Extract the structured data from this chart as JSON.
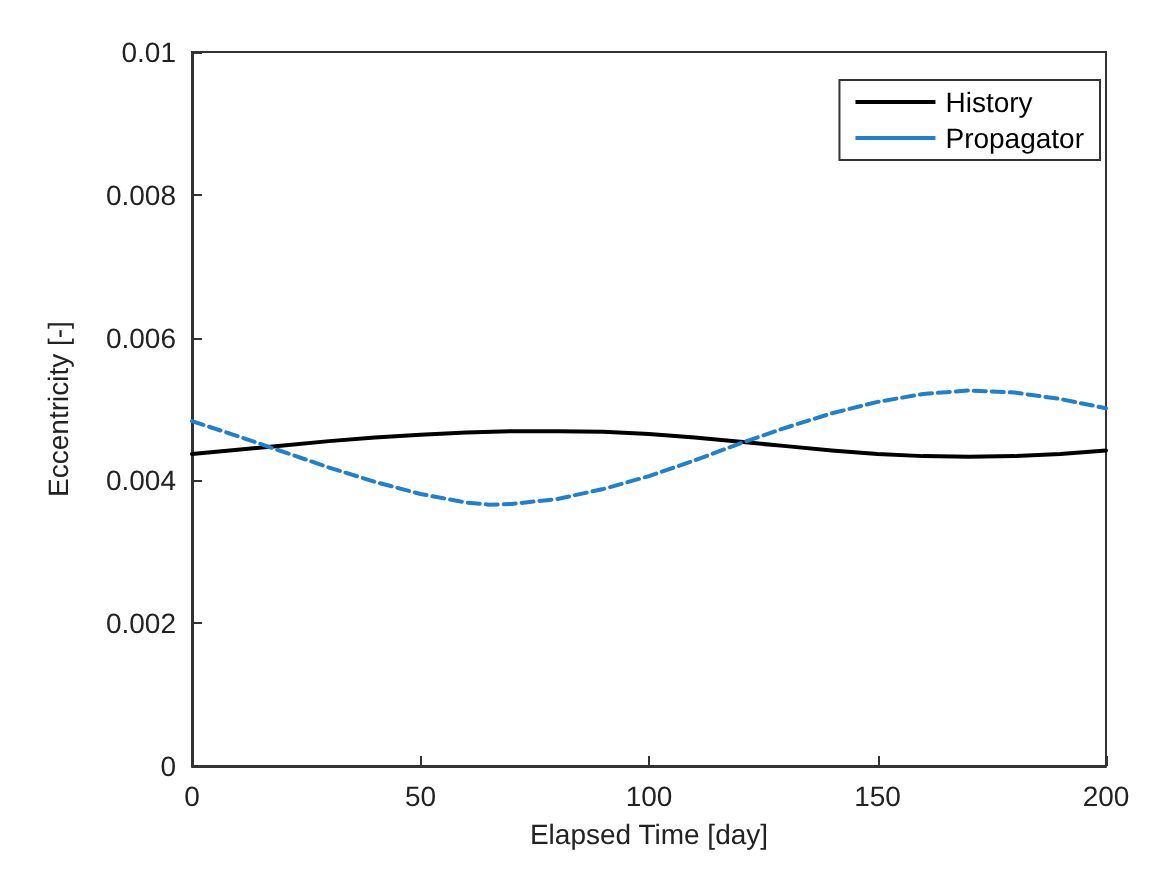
{
  "chart_data": {
    "type": "line",
    "xlabel": "Elapsed Time [day]",
    "ylabel": "Eccentricity [-]",
    "xlim": [
      0,
      200
    ],
    "xticks": [
      0,
      50,
      100,
      150,
      200
    ],
    "ylim": [
      0,
      0.01
    ],
    "yticks": [
      0,
      0.002,
      0.004,
      0.006,
      0.008,
      0.01
    ],
    "grid": false,
    "legend": "top right",
    "marker": "none",
    "series": [
      {
        "name": "History",
        "color": "#000000",
        "line_style": "solid",
        "x": [
          0,
          10,
          20,
          30,
          40,
          50,
          60,
          70,
          80,
          90,
          100,
          110,
          120,
          130,
          140,
          150,
          160,
          170,
          180,
          190,
          200
        ],
        "values": [
          0.00437,
          0.00443,
          0.00449,
          0.00455,
          0.0046,
          0.00464,
          0.00467,
          0.00469,
          0.00469,
          0.00468,
          0.00465,
          0.0046,
          0.00454,
          0.00448,
          0.00442,
          0.00437,
          0.00434,
          0.00433,
          0.00434,
          0.00437,
          0.00442
        ]
      },
      {
        "name": "Propagator",
        "color": "#1f7fd0",
        "line_style": "dashed",
        "x": [
          0,
          10,
          20,
          30,
          40,
          50,
          60,
          65,
          70,
          80,
          90,
          100,
          110,
          120,
          130,
          140,
          150,
          160,
          170,
          180,
          190,
          200
        ],
        "values": [
          0.00483,
          0.00462,
          0.0044,
          0.00418,
          0.00398,
          0.00381,
          0.00369,
          0.00366,
          0.00367,
          0.00374,
          0.00388,
          0.00406,
          0.00428,
          0.00452,
          0.00474,
          0.00494,
          0.0051,
          0.00521,
          0.00526,
          0.00523,
          0.00514,
          0.00501
        ]
      }
    ]
  }
}
